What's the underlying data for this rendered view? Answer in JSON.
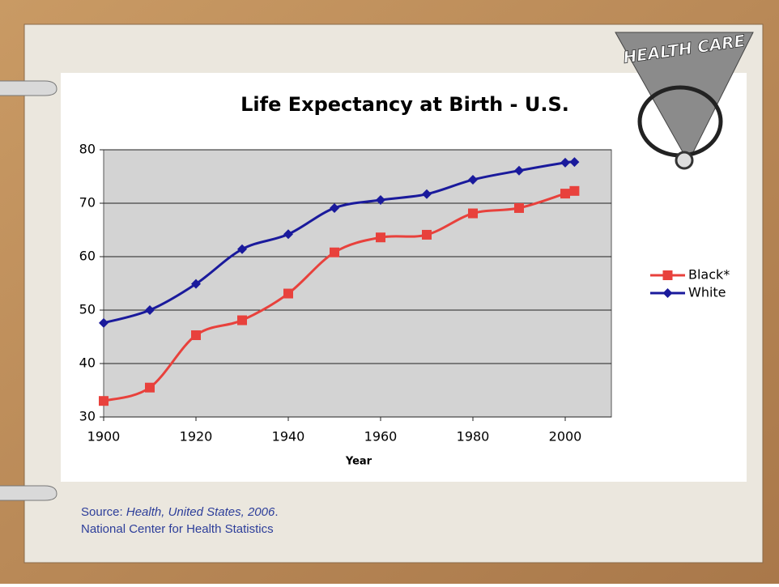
{
  "logo_text": "HEALTH CARE",
  "source": {
    "prefix": "Source:",
    "title": "Health, United States, 2006",
    "suffix": ".",
    "line2": "National Center for Health Statistics"
  },
  "chart_data": {
    "type": "line",
    "title": "Life Expectancy at Birth - U.S.",
    "x_label": "Year",
    "x": [
      1900,
      1910,
      1920,
      1930,
      1940,
      1950,
      1960,
      1970,
      1980,
      1990,
      2000,
      2002
    ],
    "series": [
      {
        "name": "Black*",
        "color": "#e8413c",
        "marker": "square",
        "values": [
          33,
          35.5,
          45.3,
          48.1,
          53.1,
          60.8,
          63.6,
          64.1,
          68.1,
          69.1,
          71.8,
          72.3
        ]
      },
      {
        "name": "White",
        "color": "#1a1a9c",
        "marker": "diamond",
        "values": [
          47.6,
          50,
          54.9,
          61.4,
          64.2,
          69.1,
          70.6,
          71.7,
          74.4,
          76.1,
          77.6,
          77.7
        ]
      }
    ],
    "xlim": [
      1900,
      2010
    ],
    "xticks": [
      1900,
      1920,
      1940,
      1960,
      1980,
      2000
    ],
    "ylim": [
      30,
      80
    ],
    "yticks": [
      30,
      40,
      50,
      60,
      70,
      80
    ],
    "grid": true,
    "legend": "right"
  }
}
